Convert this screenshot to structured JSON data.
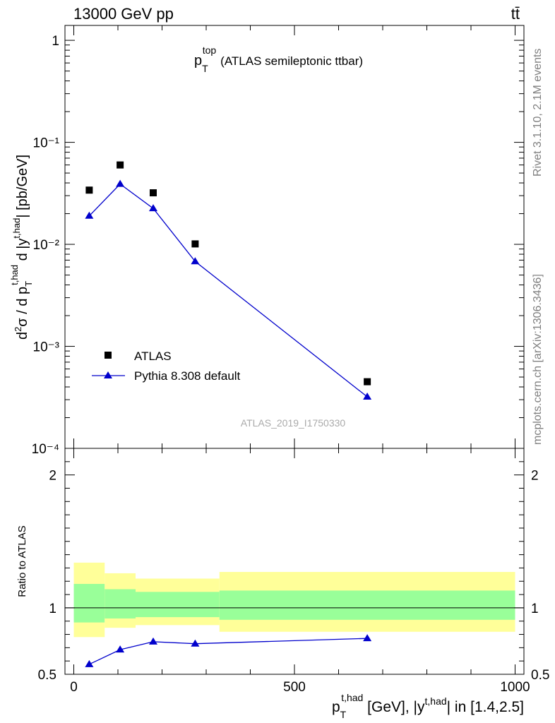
{
  "header": {
    "energy": "13000 GeV pp",
    "process": "tt̄"
  },
  "side_text": {
    "rivet": "Rivet 3.1.10,  2.1M events",
    "mcplots": "mcplots.cern.ch [arXiv:1306.3436]"
  },
  "chart_data": [
    {
      "type": "scatter",
      "title_main": "p",
      "title_sub": "T",
      "title_sup": "top",
      "title_rest": "(ATLAS semileptonic ttbar)",
      "ylabel": "d²σ / d p_T^{t,had} d |y^{t,had}| [pb/GeV]",
      "yscale": "log",
      "ylim": [
        0.0001,
        1.4
      ],
      "xlim": [
        -20,
        1020
      ],
      "y_ticks": [
        "1",
        "10⁻¹",
        "10⁻²",
        "10⁻³",
        "10⁻⁴"
      ],
      "y_tick_values": [
        1,
        0.1,
        0.01,
        0.001,
        0.0001
      ],
      "watermark": "ATLAS_2019_I1750330",
      "legend_position": "lower-left",
      "series": [
        {
          "name": "ATLAS",
          "marker": "square",
          "color": "#000000",
          "x": [
            35,
            105,
            180,
            275,
            665
          ],
          "y": [
            0.034,
            0.06,
            0.032,
            0.0101,
            0.00045
          ]
        },
        {
          "name": "Pythia 8.308 default",
          "marker": "triangle",
          "line": true,
          "color": "#0000cc",
          "x": [
            35,
            105,
            180,
            275,
            665
          ],
          "y": [
            0.019,
            0.039,
            0.0225,
            0.0068,
            0.00032
          ]
        }
      ]
    },
    {
      "type": "line",
      "ylabel": "Ratio to ATLAS",
      "xlabel": "p_T^{t,had} [GeV], |y^{t,had}| in [1.4,2.5]",
      "ylim": [
        0.5,
        2.2
      ],
      "xlim": [
        -20,
        1020
      ],
      "x_ticks": [
        "0",
        "500",
        "1000"
      ],
      "x_tick_values": [
        0,
        500,
        1000
      ],
      "y_ticks": [
        "0.5",
        "1",
        "2"
      ],
      "y_tick_values": [
        0.5,
        1,
        2
      ],
      "reference": 1,
      "bands": [
        {
          "x0": 0,
          "x1": 70,
          "inner": [
            0.89,
            1.18
          ],
          "outer": [
            0.78,
            1.34
          ]
        },
        {
          "x0": 70,
          "x1": 140,
          "inner": [
            0.92,
            1.14
          ],
          "outer": [
            0.85,
            1.26
          ]
        },
        {
          "x0": 140,
          "x1": 330,
          "inner": [
            0.93,
            1.12
          ],
          "outer": [
            0.87,
            1.22
          ]
        },
        {
          "x0": 330,
          "x1": 1000,
          "inner": [
            0.91,
            1.13
          ],
          "outer": [
            0.82,
            1.27
          ]
        }
      ],
      "band_colors": {
        "inner": "#99ff99",
        "outer": "#ffff99"
      },
      "series": [
        {
          "name": "Pythia 8.308 default",
          "color": "#0000cc",
          "x": [
            35,
            105,
            180,
            275,
            665
          ],
          "y": [
            0.575,
            0.685,
            0.745,
            0.73,
            0.77
          ],
          "yerr": [
            0.01,
            0.01,
            0.01,
            0.01,
            0.02
          ]
        }
      ]
    }
  ]
}
